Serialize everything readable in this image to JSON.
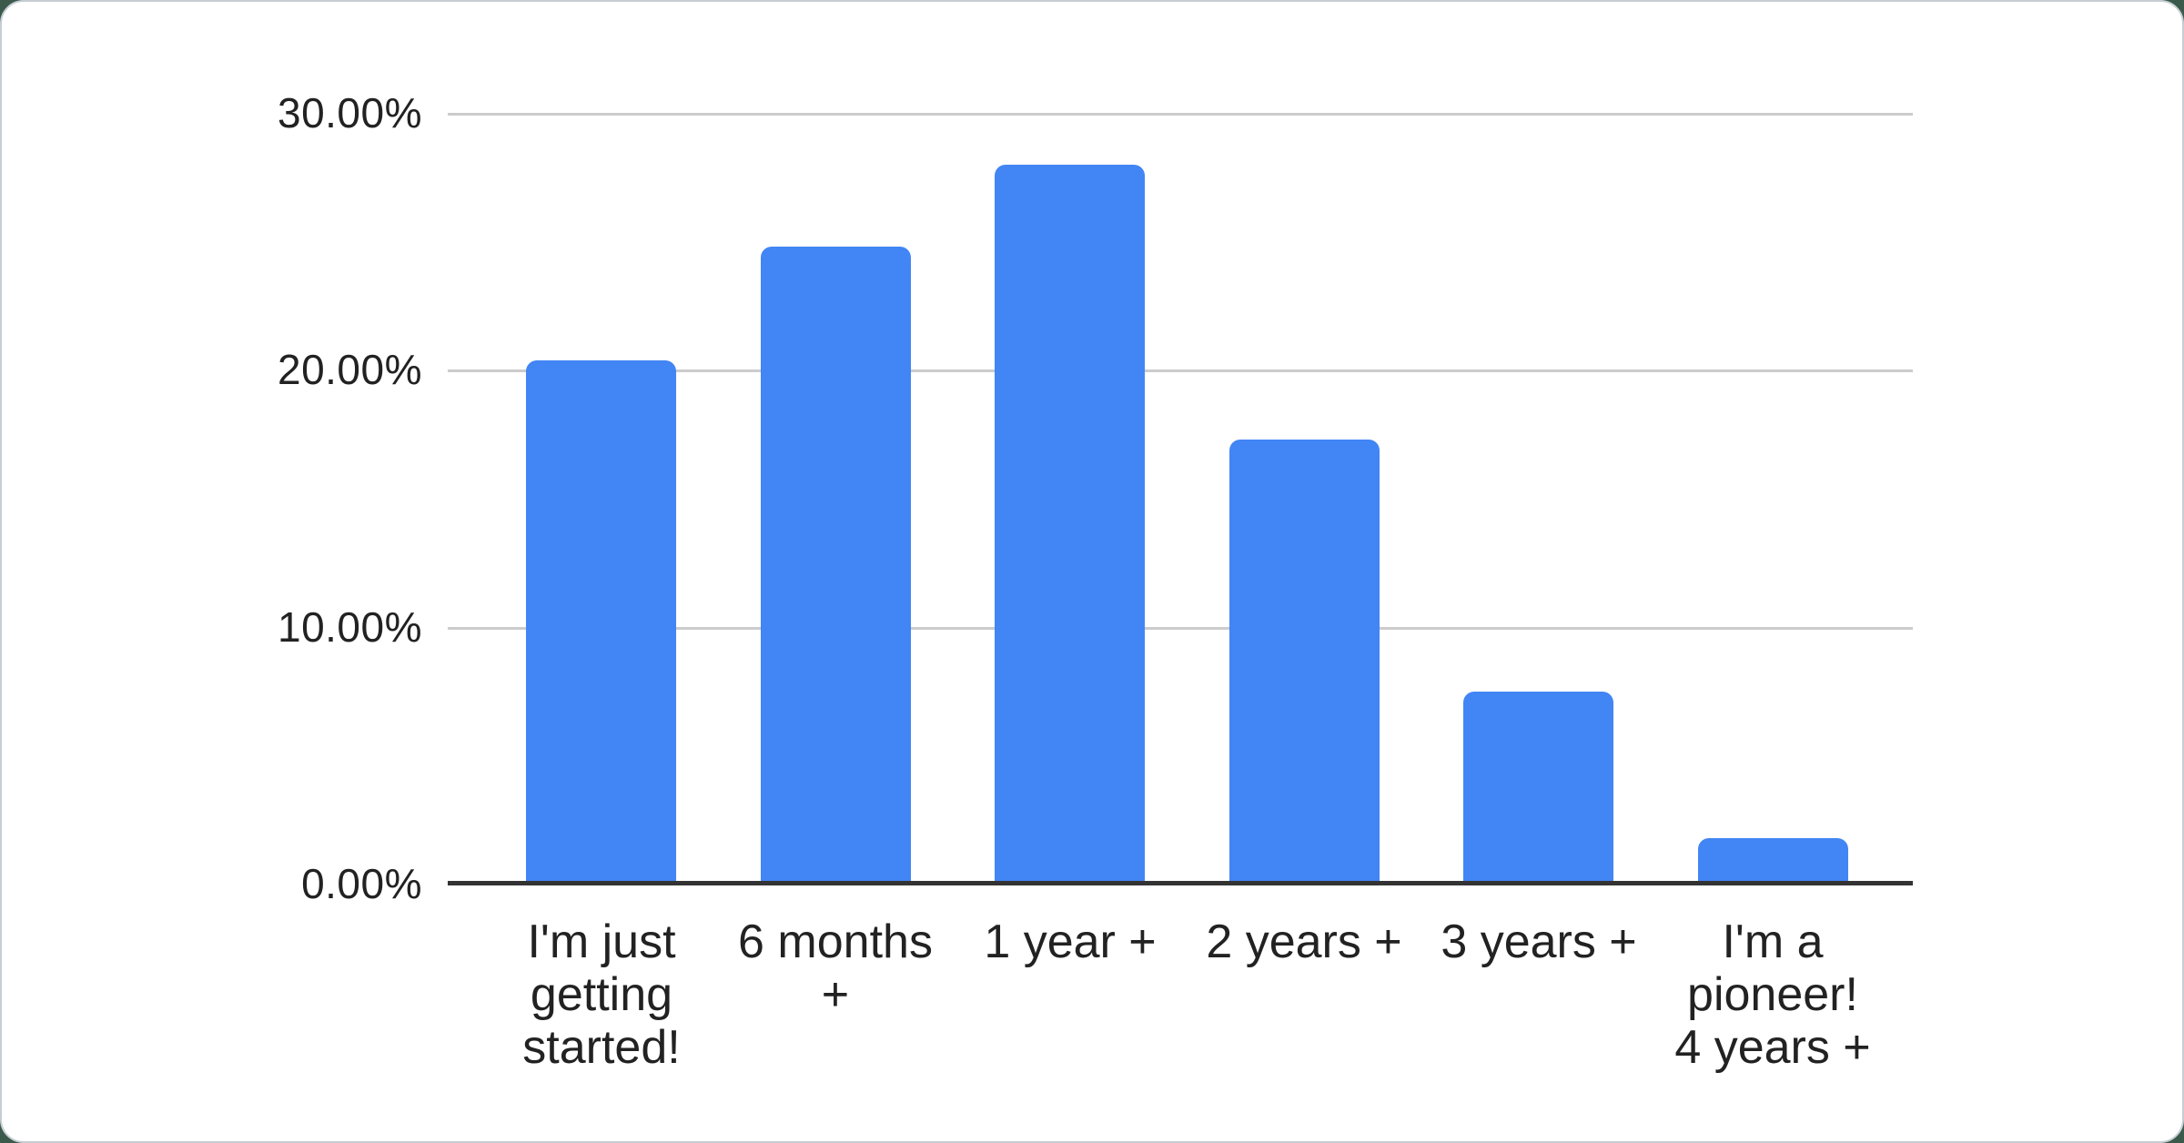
{
  "chart_data": {
    "type": "bar",
    "title": "",
    "xlabel": "",
    "ylabel": "",
    "categories": [
      "I'm just getting started!",
      "6 months +",
      "1 year +",
      "2 years +",
      "3 years +",
      "I'm a pioneer! 4 years +"
    ],
    "tick_labels": [
      "I'm just\ngetting\nstarted!",
      "6 months\n+",
      "1 year +",
      "2 years +",
      "3 years +",
      "I'm a\npioneer!\n4 years +"
    ],
    "values": [
      20.4,
      24.8,
      28.0,
      17.3,
      7.5,
      1.8
    ],
    "unit": "%",
    "y_ticks": [
      "0.00%",
      "10.00%",
      "20.00%",
      "30.00%"
    ],
    "y_tick_values": [
      0,
      10,
      20,
      30
    ],
    "ylim": [
      0,
      30
    ],
    "grid": true,
    "legend": "none"
  },
  "colors": {
    "bar": "#4285f4",
    "gridline": "#cccccc",
    "axis_line": "#333333",
    "label_text": "#222222",
    "card_background": "#ffffff",
    "card_border": "#c7ced3",
    "page_background": "#3b5a4c"
  }
}
